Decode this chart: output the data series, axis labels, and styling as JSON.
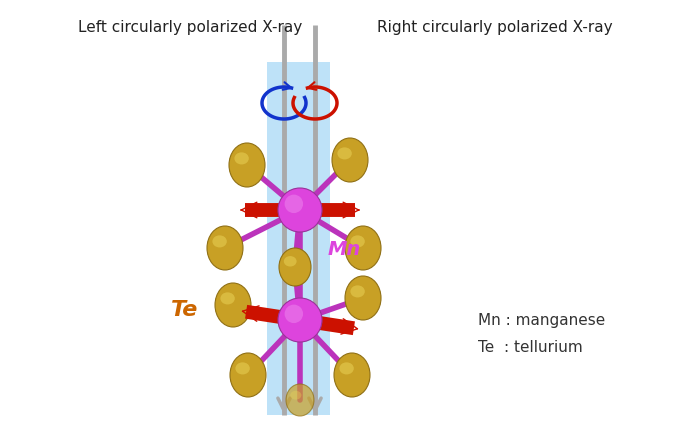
{
  "bg_color": "#ffffff",
  "left_label": "Left circularly polarized X-ray",
  "right_label": "Right circularly polarized X-ray",
  "mn_label": "Mn",
  "te_label": "Te",
  "legend_mn": "Mn : manganese",
  "legend_te": "Te  : tellurium",
  "mn_color": "#dd44dd",
  "te_color": "#c8a820",
  "bond_color": "#bb33bb",
  "red_arr": "#cc1100",
  "blue_arr": "#1133cc",
  "beam_color": "#aaaaaa",
  "panel_color": "#70c0f0",
  "panel_alpha": 0.45,
  "figw": 7.0,
  "figh": 4.45
}
